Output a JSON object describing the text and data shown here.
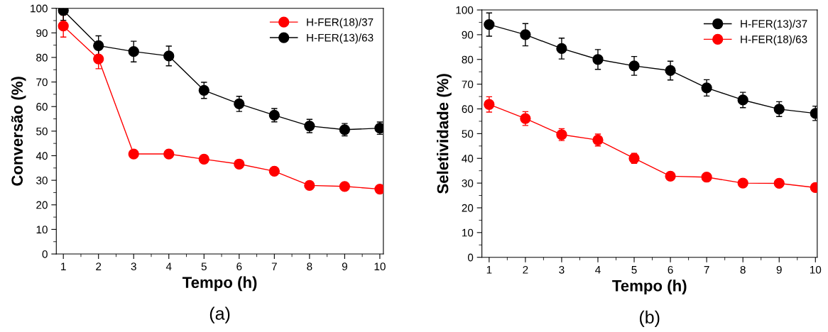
{
  "chart_data": [
    {
      "type": "line",
      "xlabel": "Tempo (h)",
      "ylabel": "Conversão (%)",
      "annotations": [
        "(a)"
      ],
      "x": [
        1,
        2,
        3,
        4,
        5,
        6,
        7,
        8,
        9,
        10
      ],
      "xlim": [
        0.8,
        10.1
      ],
      "ylim": [
        0,
        100
      ],
      "xticks": [
        1,
        {
          "value": 1.5,
          "label": null
        },
        2,
        {
          "value": 2.5,
          "label": null
        },
        3,
        {
          "value": 3.5,
          "label": null
        },
        4,
        {
          "value": 4.5,
          "label": null
        },
        5,
        {
          "value": 5.5,
          "label": null
        },
        6,
        {
          "value": 6.5,
          "label": null
        },
        7,
        {
          "value": 7.5,
          "label": null
        },
        8,
        {
          "value": 8.5,
          "label": null
        },
        9,
        {
          "value": 9.5,
          "label": null
        },
        10
      ],
      "yticks": [
        0,
        {
          "value": 5,
          "label": null
        },
        10,
        {
          "value": 15,
          "label": null
        },
        20,
        {
          "value": 25,
          "label": null
        },
        30,
        {
          "value": 35,
          "label": null
        },
        40,
        {
          "value": 45,
          "label": null
        },
        50,
        {
          "value": 55,
          "label": null
        },
        60,
        {
          "value": 65,
          "label": null
        },
        70,
        {
          "value": 75,
          "label": null
        },
        80,
        {
          "value": 85,
          "label": null
        },
        90,
        {
          "value": 95,
          "label": null
        },
        100
      ],
      "marker": "circle",
      "legend": "top right",
      "grid": false,
      "series": [
        {
          "name": "H-FER(18)/37",
          "color": "#ff0000",
          "values": [
            92.8,
            79.4,
            40.7,
            40.7,
            38.6,
            36.6,
            33.7,
            27.9,
            27.5,
            26.4
          ],
          "errors": [
            4.5,
            4,
            1.5,
            1.5,
            1.5,
            1.5,
            1.2,
            null,
            null,
            null
          ]
        },
        {
          "name": "H-FER(13)/63",
          "color": "#000000",
          "values": [
            99.1,
            84.8,
            82.4,
            80.6,
            66.6,
            61.1,
            56.5,
            52.1,
            50.6,
            51.2
          ],
          "errors": [
            4,
            4,
            4.2,
            4,
            3.3,
            3.1,
            2.7,
            2.7,
            2.5,
            2.5
          ]
        }
      ]
    },
    {
      "type": "line",
      "xlabel": "Tempo (h)",
      "ylabel": "Seletividade (%)",
      "annotations": [
        "(b)"
      ],
      "x": [
        1,
        2,
        3,
        4,
        5,
        6,
        7,
        8,
        9,
        10
      ],
      "xlim": [
        0.8,
        10.05
      ],
      "ylim": [
        0,
        100
      ],
      "xticks": [
        1,
        {
          "value": 1.5,
          "label": null
        },
        2,
        {
          "value": 2.5,
          "label": null
        },
        3,
        {
          "value": 3.5,
          "label": null
        },
        4,
        {
          "value": 4.5,
          "label": null
        },
        5,
        {
          "value": 5.5,
          "label": null
        },
        6,
        {
          "value": 6.5,
          "label": null
        },
        7,
        {
          "value": 7.5,
          "label": null
        },
        8,
        {
          "value": 8.5,
          "label": null
        },
        9,
        {
          "value": 9.5,
          "label": null
        },
        10
      ],
      "yticks": [
        0,
        {
          "value": 5,
          "label": null
        },
        10,
        {
          "value": 15,
          "label": null
        },
        20,
        {
          "value": 25,
          "label": null
        },
        30,
        {
          "value": 35,
          "label": null
        },
        40,
        {
          "value": 45,
          "label": null
        },
        50,
        {
          "value": 55,
          "label": null
        },
        60,
        {
          "value": 65,
          "label": null
        },
        70,
        {
          "value": 75,
          "label": null
        },
        80,
        {
          "value": 85,
          "label": null
        },
        90,
        {
          "value": 95,
          "label": null
        },
        100
      ],
      "marker": "circle",
      "legend": "top right",
      "grid": false,
      "series": [
        {
          "name": "H-FER(13)/37",
          "color": "#000000",
          "values": [
            94.1,
            90.0,
            84.4,
            80.0,
            77.4,
            75.5,
            68.5,
            63.6,
            59.9,
            58.2
          ],
          "errors": [
            4.7,
            4.5,
            4.2,
            4,
            3.8,
            3.8,
            3.3,
            3.1,
            3,
            2.9
          ]
        },
        {
          "name": "H-FER(18)/63",
          "color": "#ff0000",
          "values": [
            61.8,
            56.1,
            49.6,
            47.4,
            40.0,
            32.8,
            32.4,
            30.0,
            29.9,
            28.2
          ],
          "errors": [
            3.1,
            2.8,
            2.4,
            2.4,
            2,
            null,
            null,
            null,
            null,
            null
          ]
        }
      ]
    }
  ]
}
